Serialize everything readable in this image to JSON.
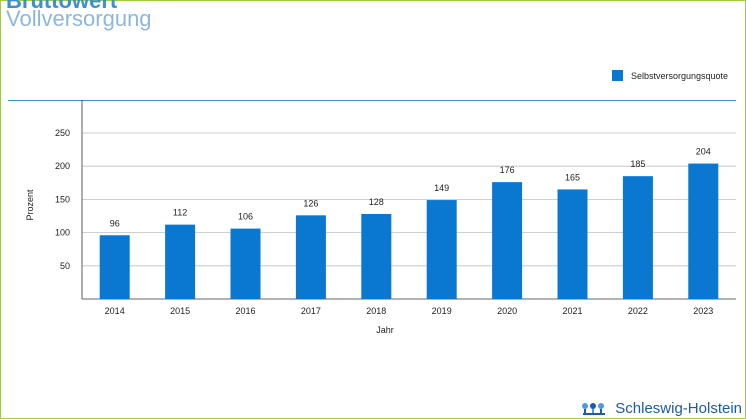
{
  "header": {
    "title": "Bruttowert",
    "subtitle": "Vollversorgung"
  },
  "legend": {
    "label": "Selbstversorgungsquote",
    "color": "#0a78d0"
  },
  "footer": {
    "brand": "Schleswig-Holstein"
  },
  "chart_data": {
    "type": "bar",
    "categories": [
      "2014",
      "2015",
      "2016",
      "2017",
      "2018",
      "2019",
      "2020",
      "2021",
      "2022",
      "2023"
    ],
    "series": [
      {
        "name": "Selbstversorgungsquote",
        "values": [
          96,
          112,
          106,
          126,
          128,
          149,
          176,
          165,
          185,
          204
        ],
        "color": "#0a78d0"
      }
    ],
    "xlabel": "Jahr",
    "ylabel": "Prozent",
    "ylim": [
      0,
      250
    ],
    "yticks": [
      50,
      100,
      150,
      200,
      250
    ],
    "grid": true,
    "legend_position": "top-right",
    "data_labels": true
  }
}
